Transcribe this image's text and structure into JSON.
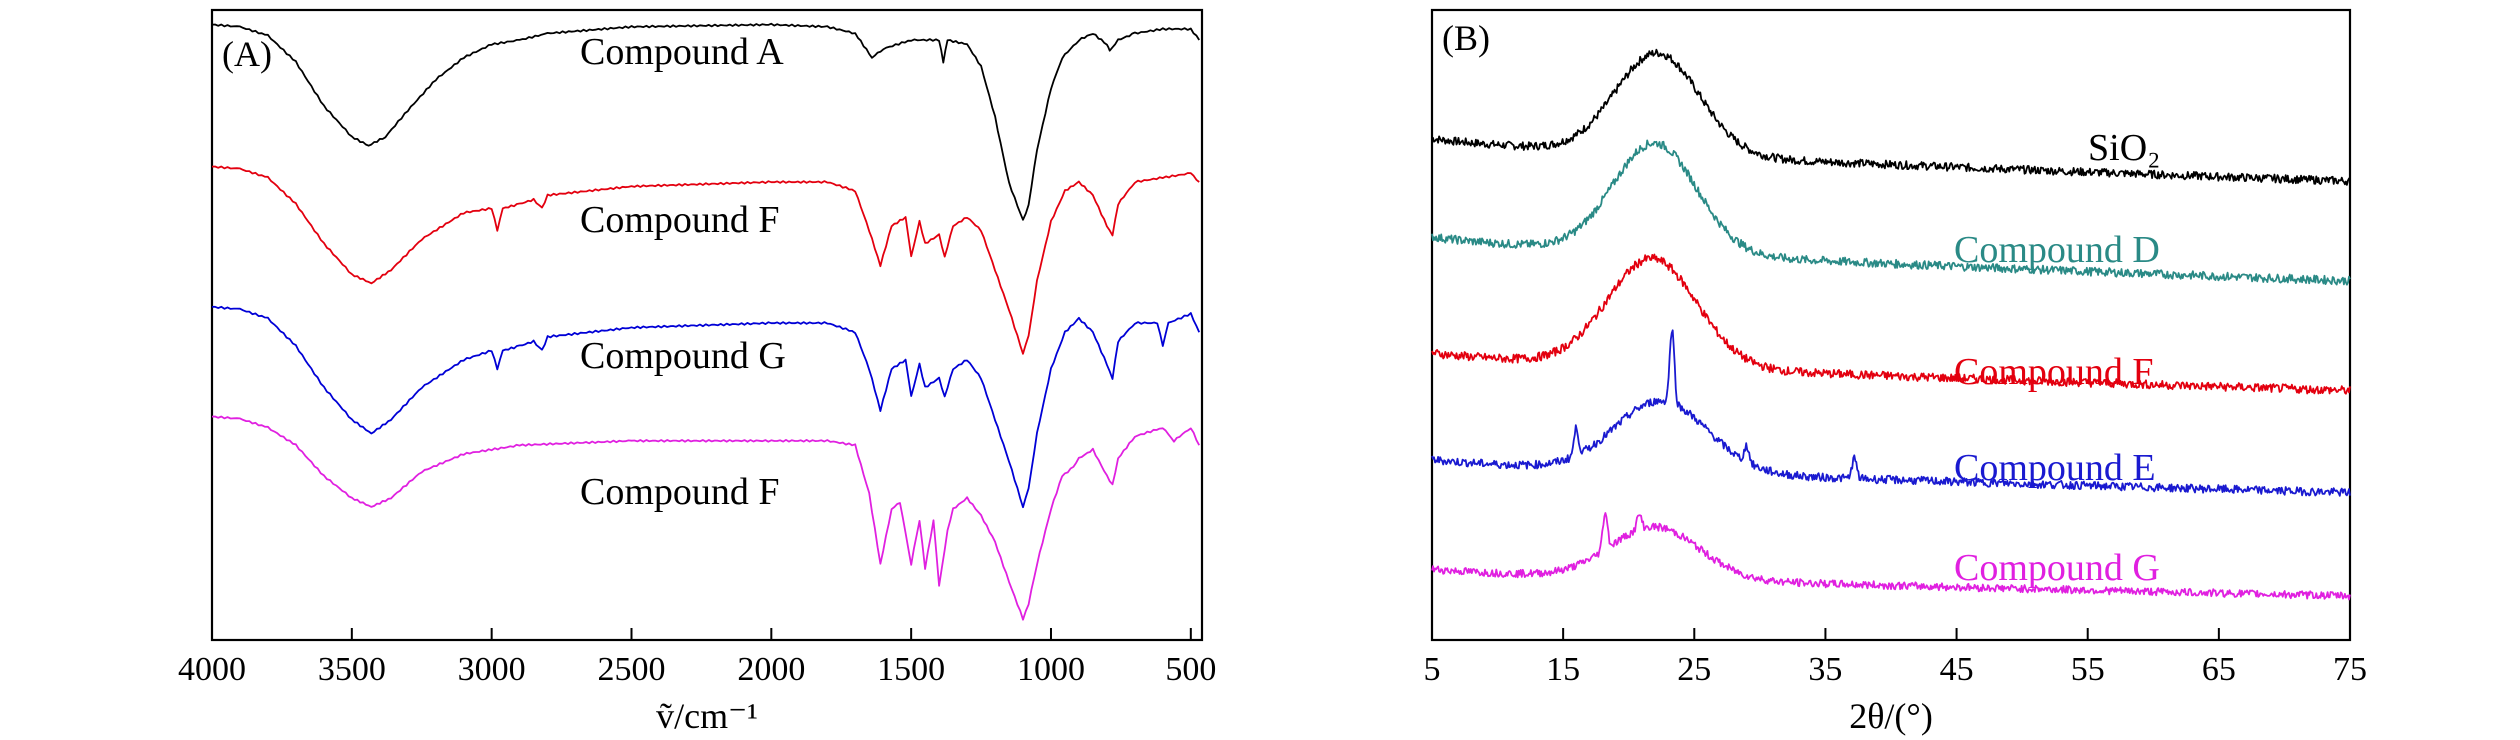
{
  "chart_data": [
    {
      "type": "line",
      "panel_label": "(A)",
      "xlabel": "ṽ/cm⁻¹",
      "ylabel": "",
      "xlim": [
        4000,
        460
      ],
      "x_reversed": true,
      "x_ticks": [
        4000,
        3500,
        3000,
        2500,
        2000,
        1500,
        1000,
        500
      ],
      "y_axis_shown": false,
      "grid": false,
      "series": [
        {
          "name": "Compound A",
          "color": "#000000",
          "offset": 0,
          "points": [
            [
              4000,
              0.97
            ],
            [
              3900,
              0.96
            ],
            [
              3800,
              0.92
            ],
            [
              3700,
              0.8
            ],
            [
              3600,
              0.6
            ],
            [
              3500,
              0.46
            ],
            [
              3440,
              0.42
            ],
            [
              3380,
              0.46
            ],
            [
              3300,
              0.58
            ],
            [
              3200,
              0.72
            ],
            [
              3100,
              0.82
            ],
            [
              3000,
              0.88
            ],
            [
              2900,
              0.9
            ],
            [
              2800,
              0.93
            ],
            [
              2500,
              0.96
            ],
            [
              2000,
              0.97
            ],
            [
              1800,
              0.96
            ],
            [
              1700,
              0.93
            ],
            [
              1640,
              0.82
            ],
            [
              1600,
              0.86
            ],
            [
              1500,
              0.9
            ],
            [
              1400,
              0.9
            ],
            [
              1385,
              0.8
            ],
            [
              1370,
              0.9
            ],
            [
              1300,
              0.88
            ],
            [
              1250,
              0.78
            ],
            [
              1200,
              0.55
            ],
            [
              1150,
              0.25
            ],
            [
              1100,
              0.08
            ],
            [
              1080,
              0.15
            ],
            [
              1050,
              0.4
            ],
            [
              1000,
              0.68
            ],
            [
              960,
              0.82
            ],
            [
              900,
              0.9
            ],
            [
              850,
              0.93
            ],
            [
              800,
              0.88
            ],
            [
              790,
              0.85
            ],
            [
              760,
              0.9
            ],
            [
              700,
              0.93
            ],
            [
              600,
              0.95
            ],
            [
              500,
              0.95
            ],
            [
              470,
              0.9
            ]
          ]
        },
        {
          "name": "Compound F",
          "color": "#e3000f",
          "offset": -1,
          "points": [
            [
              4000,
              0.97
            ],
            [
              3900,
              0.96
            ],
            [
              3800,
              0.92
            ],
            [
              3700,
              0.8
            ],
            [
              3600,
              0.62
            ],
            [
              3500,
              0.48
            ],
            [
              3430,
              0.44
            ],
            [
              3360,
              0.5
            ],
            [
              3250,
              0.64
            ],
            [
              3100,
              0.76
            ],
            [
              3000,
              0.78
            ],
            [
              2980,
              0.68
            ],
            [
              2960,
              0.78
            ],
            [
              2900,
              0.8
            ],
            [
              2850,
              0.82
            ],
            [
              2820,
              0.78
            ],
            [
              2800,
              0.84
            ],
            [
              2500,
              0.88
            ],
            [
              2000,
              0.9
            ],
            [
              1800,
              0.9
            ],
            [
              1700,
              0.86
            ],
            [
              1650,
              0.68
            ],
            [
              1610,
              0.52
            ],
            [
              1570,
              0.7
            ],
            [
              1520,
              0.74
            ],
            [
              1500,
              0.56
            ],
            [
              1470,
              0.72
            ],
            [
              1450,
              0.62
            ],
            [
              1400,
              0.66
            ],
            [
              1380,
              0.56
            ],
            [
              1350,
              0.7
            ],
            [
              1300,
              0.74
            ],
            [
              1250,
              0.68
            ],
            [
              1200,
              0.5
            ],
            [
              1150,
              0.32
            ],
            [
              1100,
              0.12
            ],
            [
              1080,
              0.2
            ],
            [
              1050,
              0.45
            ],
            [
              1000,
              0.72
            ],
            [
              950,
              0.86
            ],
            [
              900,
              0.9
            ],
            [
              850,
              0.84
            ],
            [
              800,
              0.7
            ],
            [
              780,
              0.66
            ],
            [
              760,
              0.8
            ],
            [
              700,
              0.9
            ],
            [
              600,
              0.92
            ],
            [
              500,
              0.94
            ],
            [
              470,
              0.9
            ]
          ]
        },
        {
          "name": "Compound G",
          "color": "#0000d6",
          "offset": -2,
          "points": [
            [
              4000,
              0.97
            ],
            [
              3900,
              0.96
            ],
            [
              3800,
              0.92
            ],
            [
              3700,
              0.8
            ],
            [
              3600,
              0.62
            ],
            [
              3500,
              0.48
            ],
            [
              3430,
              0.42
            ],
            [
              3360,
              0.48
            ],
            [
              3250,
              0.62
            ],
            [
              3100,
              0.74
            ],
            [
              3000,
              0.78
            ],
            [
              2980,
              0.7
            ],
            [
              2960,
              0.78
            ],
            [
              2900,
              0.8
            ],
            [
              2850,
              0.82
            ],
            [
              2820,
              0.78
            ],
            [
              2800,
              0.84
            ],
            [
              2500,
              0.88
            ],
            [
              2000,
              0.9
            ],
            [
              1800,
              0.9
            ],
            [
              1700,
              0.86
            ],
            [
              1650,
              0.7
            ],
            [
              1610,
              0.52
            ],
            [
              1570,
              0.7
            ],
            [
              1520,
              0.74
            ],
            [
              1500,
              0.58
            ],
            [
              1470,
              0.72
            ],
            [
              1450,
              0.62
            ],
            [
              1400,
              0.66
            ],
            [
              1380,
              0.58
            ],
            [
              1350,
              0.7
            ],
            [
              1300,
              0.74
            ],
            [
              1250,
              0.66
            ],
            [
              1200,
              0.48
            ],
            [
              1150,
              0.3
            ],
            [
              1100,
              0.1
            ],
            [
              1080,
              0.18
            ],
            [
              1050,
              0.42
            ],
            [
              1000,
              0.7
            ],
            [
              950,
              0.86
            ],
            [
              900,
              0.92
            ],
            [
              850,
              0.86
            ],
            [
              800,
              0.72
            ],
            [
              780,
              0.66
            ],
            [
              760,
              0.82
            ],
            [
              700,
              0.9
            ],
            [
              620,
              0.9
            ],
            [
              600,
              0.8
            ],
            [
              580,
              0.9
            ],
            [
              500,
              0.94
            ],
            [
              470,
              0.86
            ]
          ]
        },
        {
          "name": "Compound F",
          "color": "#e020e0",
          "offset": -3,
          "points": [
            [
              4000,
              0.97
            ],
            [
              3900,
              0.96
            ],
            [
              3800,
              0.92
            ],
            [
              3700,
              0.84
            ],
            [
              3600,
              0.7
            ],
            [
              3500,
              0.6
            ],
            [
              3430,
              0.56
            ],
            [
              3360,
              0.6
            ],
            [
              3250,
              0.72
            ],
            [
              3100,
              0.8
            ],
            [
              3000,
              0.82
            ],
            [
              2900,
              0.84
            ],
            [
              2500,
              0.86
            ],
            [
              2000,
              0.86
            ],
            [
              1800,
              0.86
            ],
            [
              1700,
              0.84
            ],
            [
              1650,
              0.62
            ],
            [
              1610,
              0.3
            ],
            [
              1570,
              0.55
            ],
            [
              1540,
              0.58
            ],
            [
              1500,
              0.3
            ],
            [
              1470,
              0.5
            ],
            [
              1450,
              0.28
            ],
            [
              1420,
              0.5
            ],
            [
              1400,
              0.2
            ],
            [
              1370,
              0.45
            ],
            [
              1350,
              0.55
            ],
            [
              1300,
              0.6
            ],
            [
              1250,
              0.52
            ],
            [
              1200,
              0.4
            ],
            [
              1150,
              0.22
            ],
            [
              1100,
              0.05
            ],
            [
              1080,
              0.12
            ],
            [
              1050,
              0.3
            ],
            [
              1000,
              0.55
            ],
            [
              960,
              0.7
            ],
            [
              920,
              0.74
            ],
            [
              900,
              0.78
            ],
            [
              850,
              0.82
            ],
            [
              800,
              0.7
            ],
            [
              780,
              0.66
            ],
            [
              760,
              0.78
            ],
            [
              700,
              0.88
            ],
            [
              600,
              0.92
            ],
            [
              560,
              0.86
            ],
            [
              500,
              0.92
            ],
            [
              470,
              0.84
            ]
          ]
        }
      ]
    },
    {
      "type": "line",
      "panel_label": "(B)",
      "xlabel": "2θ/(°)",
      "ylabel": "",
      "xlim": [
        5,
        75
      ],
      "x_ticks": [
        5,
        15,
        25,
        35,
        45,
        55,
        65,
        75
      ],
      "y_axis_shown": false,
      "grid": false,
      "series": [
        {
          "name": "SiO₂",
          "color": "#000000",
          "offset": 0,
          "baseline_start": 0.7,
          "baseline_end": 0.12,
          "peak_center": 22.2,
          "peak_height": 1.0,
          "peak_width": 4.5,
          "sharp_peaks": []
        },
        {
          "name": "Compound D",
          "color": "#2a8a86",
          "offset": -1,
          "baseline_start": 0.7,
          "baseline_end": 0.12,
          "peak_center": 22.0,
          "peak_height": 1.05,
          "peak_width": 4.5,
          "sharp_peaks": []
        },
        {
          "name": "Compound F",
          "color": "#e3000f",
          "offset": -2,
          "baseline_start": 0.6,
          "baseline_end": 0.12,
          "peak_center": 21.8,
          "peak_height": 1.0,
          "peak_width": 4.8,
          "sharp_peaks": []
        },
        {
          "name": "Compound E",
          "color": "#1a1ad0",
          "offset": -3,
          "baseline_start": 0.55,
          "baseline_end": 0.1,
          "peak_center": 22.5,
          "peak_height": 0.7,
          "peak_width": 5.0,
          "sharp_peaks": [
            [
              23.3,
              0.55
            ],
            [
              16.0,
              0.2
            ],
            [
              29.0,
              0.12
            ],
            [
              37.2,
              0.15
            ]
          ]
        },
        {
          "name": "Compound G",
          "color": "#e020e0",
          "offset": -4,
          "baseline_start": 0.45,
          "baseline_end": 0.06,
          "peak_center": 22.0,
          "peak_height": 0.55,
          "peak_width": 4.8,
          "sharp_peaks": [
            [
              18.2,
              0.3
            ],
            [
              20.8,
              0.12
            ]
          ]
        }
      ]
    }
  ]
}
